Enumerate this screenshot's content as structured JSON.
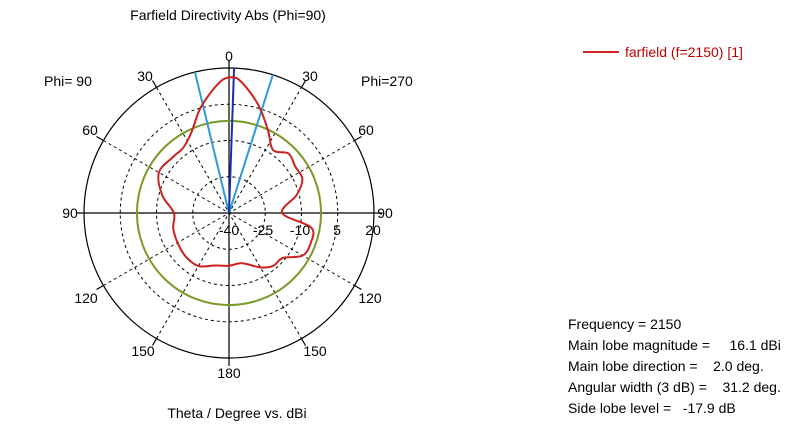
{
  "chart_data": {
    "type": "polar",
    "title": "Farfield Directivity Abs (Phi=90)",
    "xlabel": "Theta / Degree vs. dBi",
    "half_labels": {
      "left": "Phi= 90",
      "right": "Phi=270"
    },
    "angle_labels": [
      "0",
      "30",
      "30",
      "60",
      "60",
      "90",
      "90",
      "120",
      "120",
      "150",
      "150",
      "180"
    ],
    "radial_tick_labels": [
      "-40",
      "-25",
      "-10",
      "5",
      "20"
    ],
    "radial_range": [
      -40,
      20
    ],
    "grid": true,
    "legend_position": "top-right",
    "series": [
      {
        "name": "farfield (f=2150) [1]",
        "color": "#cc2222",
        "theta_deg": [
          -180,
          -165,
          -150,
          -135,
          -120,
          -105,
          -90,
          -75,
          -60,
          -45,
          -35,
          -25,
          -15,
          -5,
          0,
          5,
          15,
          25,
          35,
          45,
          55,
          65,
          75,
          90,
          100,
          110,
          120,
          130,
          140,
          150,
          165,
          180
        ],
        "directivity_dbi": [
          -18.2,
          -17.5,
          -14.7,
          -14.6,
          -15.4,
          -16.1,
          -17.2,
          -11.4,
          -6.5,
          -7.2,
          -7.0,
          -3.2,
          5.2,
          13.5,
          16.1,
          14.8,
          6.5,
          -2.0,
          -8.2,
          -5.2,
          -6.5,
          -6.5,
          -11.0,
          -18.0,
          -5.5,
          -4.0,
          -4.8,
          -11.0,
          -11.5,
          -14.0,
          -18.5,
          -18.2
        ]
      }
    ],
    "main_lobe_direction_deg": 2.0,
    "beamwidth_lines_deg": [
      -13.6,
      17.6
    ],
    "reference_circle_dbi": -1.9,
    "colors": {
      "main_lobe_marker": "#1a2fa8",
      "beamwidth_lines": "#2e9ad6",
      "reference_circle": "#7a9a2a"
    }
  },
  "legend": {
    "label": "farfield (f=2150) [1]"
  },
  "info": {
    "frequency": "Frequency = 2150",
    "main_lobe_magnitude": "Main lobe magnitude =     16.1 dBi",
    "main_lobe_direction": "Main lobe direction =    2.0 deg.",
    "angular_width": "Angular width (3 dB) =    31.2 deg.",
    "side_lobe_level": "Side lobe level =   -17.9 dB"
  }
}
